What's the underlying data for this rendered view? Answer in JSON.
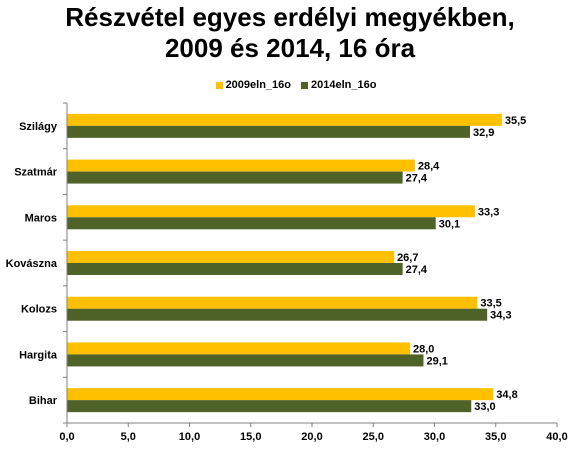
{
  "chart_data": {
    "type": "bar",
    "orientation": "horizontal",
    "title": "Részvétel egyes erdélyi megyékben, 2009 és 2014, 16 óra",
    "title_lines": [
      "Részvétel egyes erdélyi megyékben,",
      "2009 és 2014, 16 óra"
    ],
    "categories": [
      "Szilágy",
      "Szatmár",
      "Maros",
      "Kovászna",
      "Kolozs",
      "Hargita",
      "Bihar"
    ],
    "series": [
      {
        "name": "2009eln_16o",
        "color": "#FFC000",
        "values": [
          35.5,
          28.4,
          33.3,
          26.7,
          33.5,
          28.0,
          34.8
        ],
        "labels": [
          "35,5",
          "28,4",
          "33,3",
          "26,7",
          "33,5",
          "28,0",
          "34,8"
        ]
      },
      {
        "name": "2014eln_16o",
        "color": "#4F6228",
        "values": [
          32.9,
          27.4,
          30.1,
          27.4,
          34.3,
          29.1,
          33.0
        ],
        "labels": [
          "32,9",
          "27,4",
          "30,1",
          "27,4",
          "34,3",
          "29,1",
          "33,0"
        ]
      }
    ],
    "xlim": [
      0,
      40
    ],
    "xticks": [
      0,
      5,
      10,
      15,
      20,
      25,
      30,
      35,
      40
    ],
    "xtick_labels": [
      "0,0",
      "5,0",
      "10,0",
      "15,0",
      "20,0",
      "25,0",
      "30,0",
      "35,0",
      "40,0"
    ],
    "xlabel": "",
    "ylabel": "",
    "grid": false,
    "legend_position": "top"
  }
}
